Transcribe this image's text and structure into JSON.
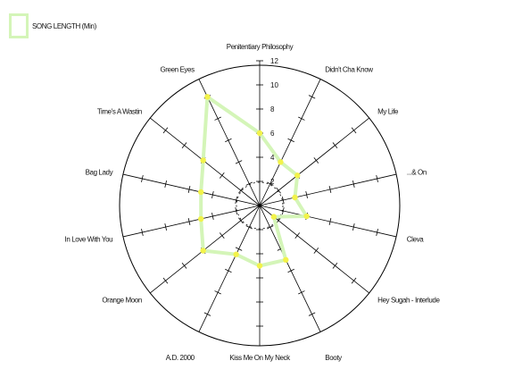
{
  "chart_data": {
    "type": "radar",
    "title": "",
    "categories": [
      "Penitentiary Philosophy",
      "Didn't Cha Know",
      "My Life",
      "...& On",
      "Cleva",
      "Hey Sugah - Interlude",
      "Booty",
      "Kiss Me On My Neck",
      "A.D. 2000",
      "Orange Moon",
      "In Love With You",
      "Bag Lady",
      "Time's A Wastin",
      "Green Eyes"
    ],
    "series": [
      {
        "name": "SONG LENGTH (Min)",
        "color": "#d4f5b8",
        "marker_color": "#f2f24a",
        "values": [
          6,
          4,
          4,
          3,
          4,
          1.5,
          5,
          5,
          4.5,
          6,
          5,
          5,
          6,
          10
        ]
      }
    ],
    "rlim": [
      0,
      12
    ],
    "r_ticks": [
      2,
      4,
      6,
      8,
      10,
      12
    ],
    "grid": true,
    "legend_position": "top-left"
  }
}
